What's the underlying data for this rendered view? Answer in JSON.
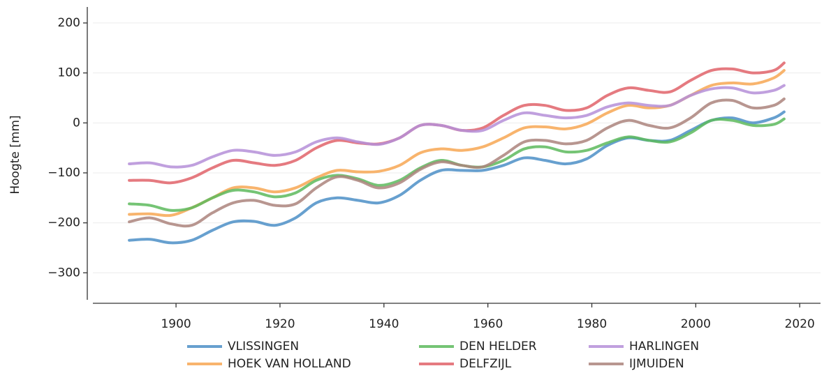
{
  "chart_data": {
    "type": "line",
    "y_label": "Hoogte [mm]",
    "x": [
      1891,
      1895,
      1899,
      1903,
      1907,
      1911,
      1915,
      1919,
      1923,
      1927,
      1931,
      1935,
      1939,
      1943,
      1947,
      1951,
      1955,
      1959,
      1963,
      1967,
      1971,
      1975,
      1979,
      1983,
      1987,
      1991,
      1995,
      1999,
      2003,
      2007,
      2011,
      2015,
      2017
    ],
    "series": [
      {
        "name": "VLISSINGEN",
        "color": "#4c8fc7",
        "values": [
          -235,
          -233,
          -240,
          -235,
          -215,
          -198,
          -197,
          -205,
          -190,
          -160,
          -150,
          -155,
          -160,
          -145,
          -115,
          -95,
          -95,
          -95,
          -85,
          -70,
          -75,
          -82,
          -72,
          -45,
          -30,
          -35,
          -35,
          -15,
          5,
          10,
          0,
          10,
          22
        ]
      },
      {
        "name": "HOEK VAN HOLLAND",
        "color": "#f7a754",
        "values": [
          -183,
          -182,
          -185,
          -170,
          -150,
          -130,
          -130,
          -138,
          -130,
          -110,
          -95,
          -98,
          -97,
          -85,
          -60,
          -52,
          -55,
          -48,
          -30,
          -10,
          -8,
          -12,
          -2,
          20,
          35,
          30,
          35,
          55,
          75,
          80,
          78,
          90,
          105
        ]
      },
      {
        "name": "DEN HELDER",
        "color": "#5dba5d",
        "values": [
          -162,
          -165,
          -175,
          -170,
          -150,
          -135,
          -138,
          -148,
          -140,
          -115,
          -105,
          -112,
          -125,
          -115,
          -90,
          -75,
          -85,
          -88,
          -75,
          -52,
          -48,
          -58,
          -55,
          -40,
          -28,
          -35,
          -38,
          -20,
          5,
          5,
          -5,
          -3,
          8
        ]
      },
      {
        "name": "DELFZIJL",
        "color": "#e0636a",
        "values": [
          -115,
          -115,
          -120,
          -110,
          -90,
          -75,
          -80,
          -85,
          -75,
          -50,
          -35,
          -40,
          -42,
          -30,
          -5,
          -5,
          -15,
          -10,
          15,
          35,
          35,
          25,
          30,
          55,
          70,
          65,
          62,
          85,
          105,
          108,
          100,
          105,
          120
        ]
      },
      {
        "name": "HARLINGEN",
        "color": "#b58fd8",
        "values": [
          -82,
          -80,
          -88,
          -85,
          -68,
          -55,
          -58,
          -65,
          -58,
          -38,
          -30,
          -38,
          -43,
          -30,
          -5,
          -5,
          -15,
          -15,
          5,
          20,
          15,
          10,
          15,
          32,
          40,
          35,
          35,
          55,
          68,
          70,
          60,
          65,
          75
        ]
      },
      {
        "name": "IJMUIDEN",
        "color": "#ab847c",
        "values": [
          -198,
          -190,
          -202,
          -205,
          -180,
          -160,
          -155,
          -165,
          -162,
          -130,
          -108,
          -115,
          -130,
          -120,
          -93,
          -78,
          -85,
          -88,
          -65,
          -38,
          -35,
          -42,
          -35,
          -10,
          5,
          -5,
          -10,
          10,
          40,
          45,
          30,
          35,
          48
        ]
      }
    ],
    "xlim": [
      1884,
      2024
    ],
    "ylim": [
      -354,
      232
    ],
    "xticks": [
      1900,
      1920,
      1940,
      1960,
      1980,
      2000,
      2020
    ],
    "yticks": [
      {
        "value": -300,
        "label": "−300"
      },
      {
        "value": -200,
        "label": "−200"
      },
      {
        "value": -100,
        "label": "−100"
      },
      0,
      100,
      200
    ],
    "grid": true,
    "legend_position": "bottom"
  }
}
